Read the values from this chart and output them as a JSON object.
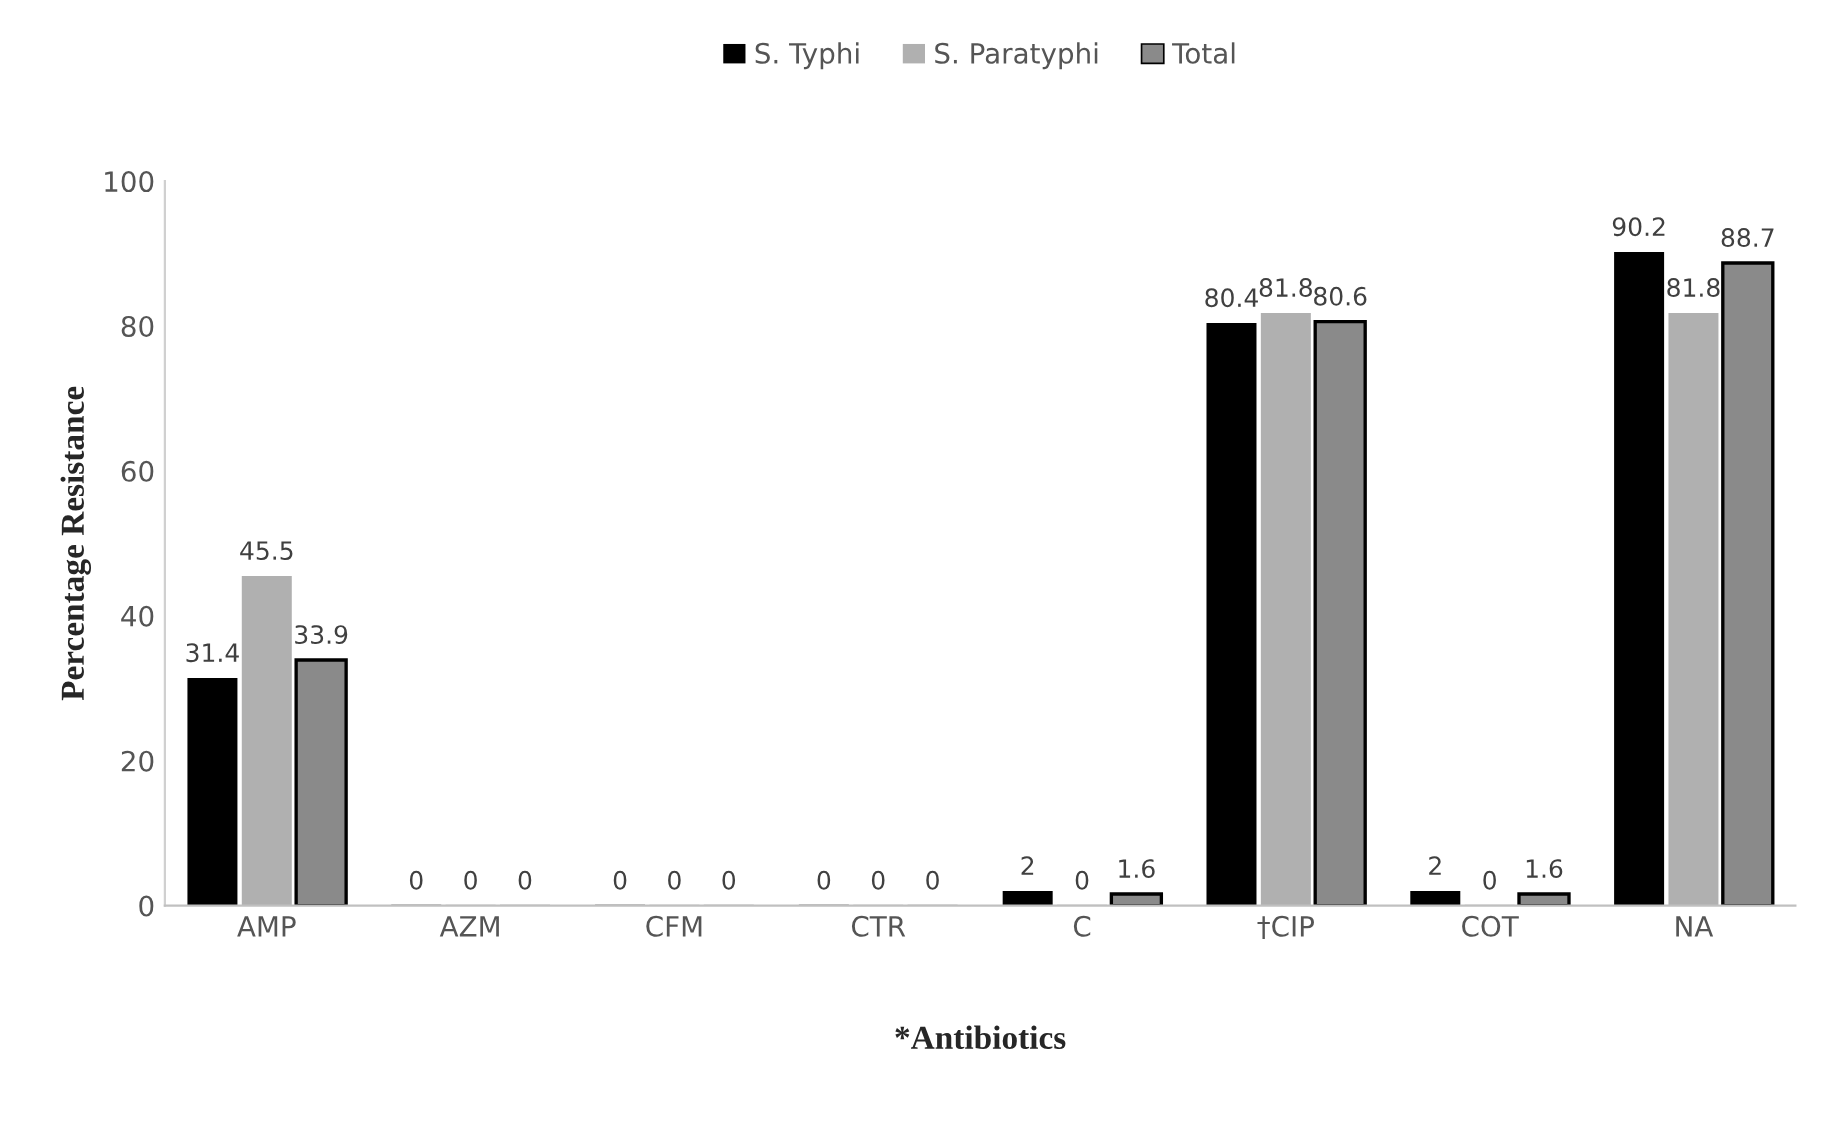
{
  "chart_data": {
    "type": "bar",
    "xlabel": "*Antibiotics",
    "ylabel": "Percentage Resistance",
    "categories": [
      "AMP",
      "AZM",
      "CFM",
      "CTR",
      "C",
      "†CIP",
      "COT",
      "NA"
    ],
    "series": [
      {
        "name": "S. Typhi",
        "color": "#000000",
        "values": [
          31.4,
          0,
          0,
          0,
          2,
          80.4,
          2,
          90.2
        ]
      },
      {
        "name": "S. Paratyphi",
        "color": "#b0b0b0",
        "values": [
          45.5,
          0,
          0,
          0,
          0,
          81.8,
          0,
          81.8
        ]
      },
      {
        "name": "Total",
        "color": "#8a8a8a",
        "values": [
          33.9,
          0,
          0,
          0,
          1.6,
          80.6,
          1.6,
          88.7
        ]
      }
    ],
    "ylim": [
      0,
      100
    ],
    "yticks": [
      0,
      20,
      40,
      60,
      80,
      100
    ],
    "grid": false,
    "legend": "top",
    "data_labels": true
  }
}
